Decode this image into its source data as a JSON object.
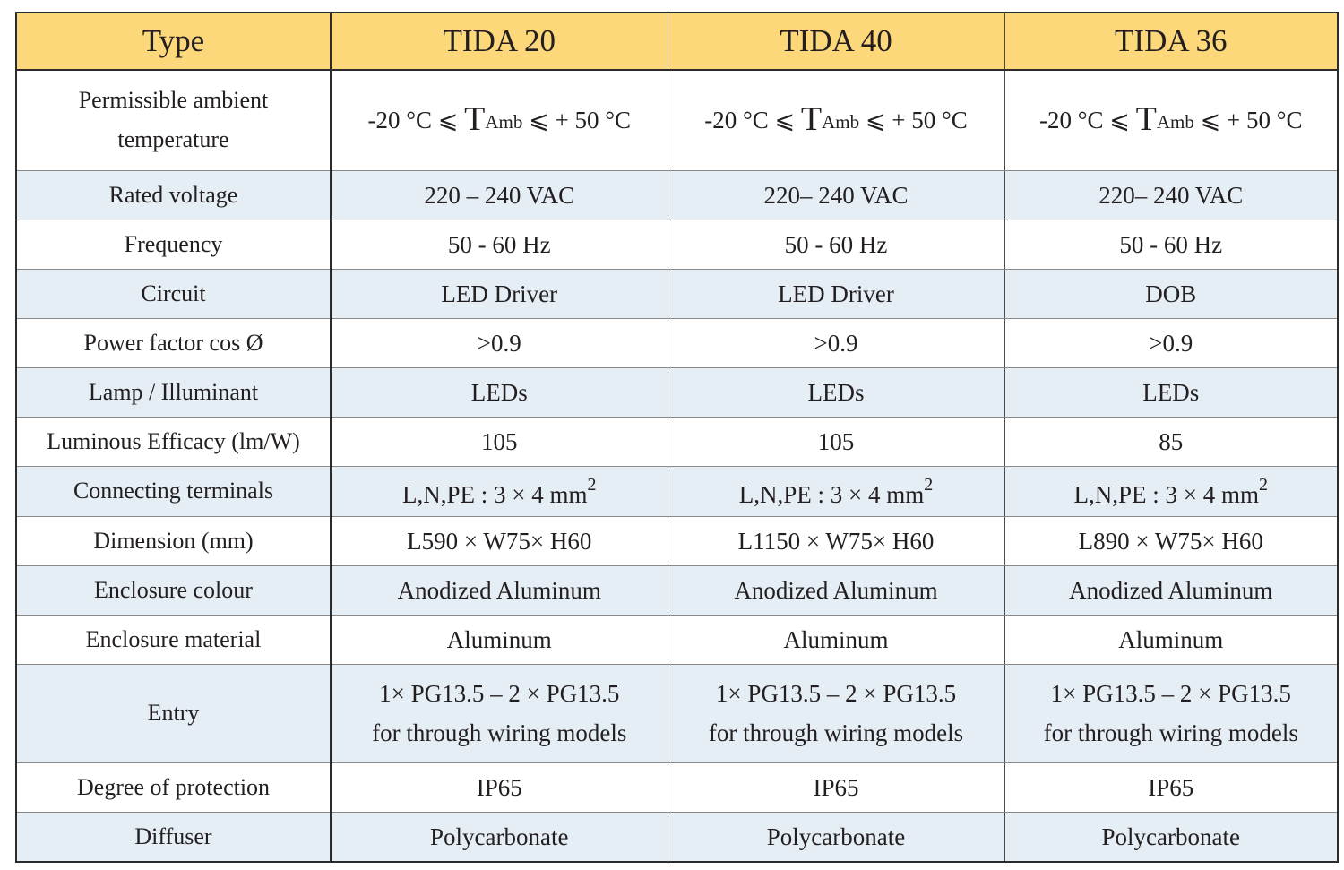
{
  "header": {
    "type_label": "Type",
    "models": [
      "TIDA 20",
      "TIDA 40",
      "TIDA 36"
    ]
  },
  "colors": {
    "header_bg": "#fcd87a",
    "shaded_row_bg": "#e5edf5",
    "plain_row_bg": "#ffffff",
    "border": "#2b2b2b"
  },
  "rows": {
    "ambient": {
      "label_line1": "Permissible ambient",
      "label_line2": "temperature",
      "values": [
        {
          "prefix": "-20 °C ⩽ ",
          "t": "T",
          "sub": "Amb",
          "suffix": " ⩽ + 50 °C"
        },
        {
          "prefix": "-20 °C ⩽ ",
          "t": "T",
          "sub": "Amb",
          "suffix": " ⩽ + 50 °C"
        },
        {
          "prefix": "-20 °C ⩽ ",
          "t": "T",
          "sub": "Amb",
          "suffix": " ⩽ + 50 °C"
        }
      ]
    },
    "voltage": {
      "label": "Rated voltage",
      "values": [
        "220 – 240 VAC",
        "220– 240 VAC",
        "220– 240 VAC"
      ]
    },
    "frequency": {
      "label": "Frequency",
      "values": [
        "50 - 60 Hz",
        "50 - 60 Hz",
        "50 - 60 Hz"
      ]
    },
    "circuit": {
      "label": "Circuit",
      "values": [
        "LED Driver",
        "LED Driver",
        "DOB"
      ]
    },
    "power_factor": {
      "label": "Power factor cos Ø",
      "values": [
        ">0.9",
        ">0.9",
        ">0.9"
      ]
    },
    "lamp": {
      "label": "Lamp / Illuminant",
      "values": [
        "LEDs",
        "LEDs",
        "LEDs"
      ]
    },
    "efficacy": {
      "label": "Luminous Efficacy (lm/W)",
      "values": [
        "105",
        "105",
        "85"
      ]
    },
    "terminals": {
      "label": "Connecting terminals",
      "values": [
        {
          "text": "L,N,PE : 3 × 4 mm",
          "sup": "2"
        },
        {
          "text": "L,N,PE : 3 × 4 mm",
          "sup": "2"
        },
        {
          "text": "L,N,PE : 3 × 4 mm",
          "sup": "2"
        }
      ]
    },
    "dimension": {
      "label": "Dimension (mm)",
      "values": [
        "L590 × W75× H60",
        "L1150 × W75× H60",
        "L890 × W75× H60"
      ]
    },
    "enclosure_colour": {
      "label": "Enclosure colour",
      "values": [
        "Anodized Aluminum",
        "Anodized Aluminum",
        "Anodized Aluminum"
      ]
    },
    "enclosure_material": {
      "label": "Enclosure material",
      "values": [
        "Aluminum",
        "Aluminum",
        "Aluminum"
      ]
    },
    "entry": {
      "label": "Entry",
      "values": [
        {
          "line1": "1× PG13.5 – 2 × PG13.5",
          "line2": "for through wiring models"
        },
        {
          "line1": "1× PG13.5 – 2 × PG13.5",
          "line2": "for through wiring models"
        },
        {
          "line1": "1× PG13.5 – 2 × PG13.5",
          "line2": "for through wiring models"
        }
      ]
    },
    "protection": {
      "label": "Degree of protection",
      "values": [
        "IP65",
        "IP65",
        "IP65"
      ]
    },
    "diffuser": {
      "label": "Diffuser",
      "values": [
        "Polycarbonate",
        "Polycarbonate",
        "Polycarbonate"
      ]
    }
  }
}
